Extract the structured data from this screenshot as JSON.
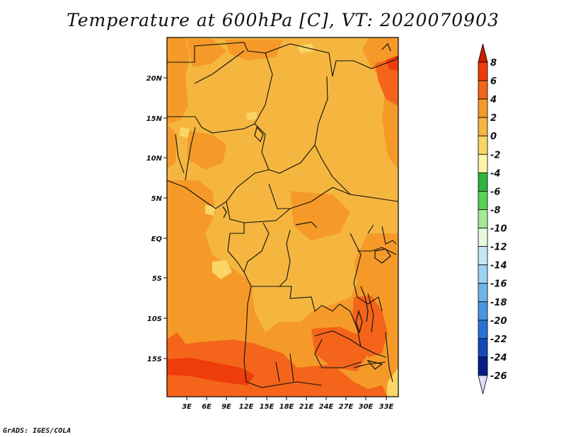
{
  "title": "Temperature at 600hPa [C], VT: 2020070903",
  "credit": "GrADS: IGES/COLA",
  "map": {
    "lat_ticks": [
      "20N",
      "15N",
      "10N",
      "5N",
      "EQ",
      "5S",
      "10S",
      "15S"
    ],
    "lon_ticks": [
      "3E",
      "6E",
      "9E",
      "12E",
      "15E",
      "18E",
      "21E",
      "24E",
      "27E",
      "30E",
      "33E"
    ]
  },
  "colorbar": {
    "levels": [
      "8",
      "6",
      "4",
      "2",
      "0",
      "-2",
      "-4",
      "-6",
      "-8",
      "-10",
      "-12",
      "-14",
      "-16",
      "-18",
      "-20",
      "-22",
      "-24",
      "-26"
    ],
    "colors": [
      "#c81e00",
      "#ee3c0a",
      "#f4641a",
      "#f59a28",
      "#f5b640",
      "#f9d666",
      "#fdf4a8",
      "#30b540",
      "#58d254",
      "#a6ea98",
      "#e6fae0",
      "#c2e8f8",
      "#9cd2f2",
      "#70b6ea",
      "#4a96e2",
      "#2a72d6",
      "#1648ba",
      "#081c8a",
      "#e0dcf6"
    ]
  }
}
